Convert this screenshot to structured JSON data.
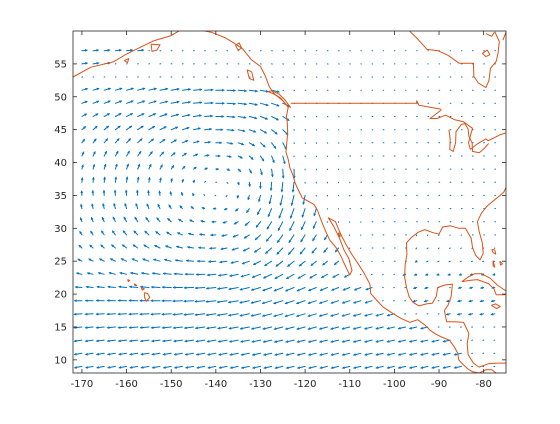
{
  "chart_data": {
    "type": "quiver",
    "title": "",
    "xlabel": "",
    "ylabel": "",
    "xlim": [
      -172,
      -75
    ],
    "ylim": [
      8,
      60
    ],
    "xticks": [
      -170,
      -160,
      -150,
      -140,
      -130,
      -120,
      -110,
      -100,
      -90,
      -80
    ],
    "yticks": [
      10,
      15,
      20,
      25,
      30,
      35,
      40,
      45,
      50,
      55
    ],
    "grid": false,
    "box": true,
    "colors": {
      "arrows": "#0072bd",
      "coastline": "#d95319",
      "axes": "#262626",
      "background": "#ffffff"
    },
    "vector_field": {
      "x_range": [
        -170,
        -76
      ],
      "x_step": 2.5,
      "y_range": [
        9,
        58
      ],
      "y_step": 2,
      "description_of_flow": "Clockwise North Pacific high centered near -140,37; westerlies north of 45N; northerly flow along the California coast; easterly trade winds south of 25N; weak winds over land"
    },
    "coastlines": [
      {
        "name": "alaska-coast",
        "points": [
          [
            -172,
            53
          ],
          [
            -168,
            54.5
          ],
          [
            -163,
            55.3
          ],
          [
            -160,
            56.5
          ],
          [
            -157,
            57.5
          ],
          [
            -154,
            58.5
          ],
          [
            -150,
            59.3
          ],
          [
            -147,
            60.5
          ],
          [
            -144,
            60.2
          ],
          [
            -141,
            59.8
          ],
          [
            -138,
            59
          ],
          [
            -136,
            58.2
          ],
          [
            -134,
            57.3
          ],
          [
            -132,
            55.6
          ],
          [
            -130,
            54.6
          ],
          [
            -129,
            53.3
          ],
          [
            -128,
            51.5
          ],
          [
            -127,
            50.5
          ],
          [
            -125,
            49.4
          ],
          [
            -123.8,
            48.4
          ],
          [
            -124.2,
            47
          ],
          [
            -124,
            46
          ],
          [
            -123.9,
            44.5
          ],
          [
            -124.1,
            43
          ],
          [
            -124.3,
            41.6
          ],
          [
            -123.8,
            40.5
          ],
          [
            -123.4,
            39.2
          ],
          [
            -122.7,
            38
          ],
          [
            -122.3,
            37
          ],
          [
            -121.8,
            36.2
          ],
          [
            -120.6,
            34.6
          ],
          [
            -119,
            34
          ],
          [
            -118,
            33.6
          ],
          [
            -117.2,
            32.7
          ],
          [
            -116.4,
            31.2
          ],
          [
            -115.5,
            29.7
          ],
          [
            -114.5,
            28.2
          ],
          [
            -113,
            27
          ],
          [
            -112,
            25.8
          ],
          [
            -110.8,
            24
          ],
          [
            -110,
            22.9
          ],
          [
            -109.5,
            23.6
          ],
          [
            -110.2,
            25.4
          ],
          [
            -111.3,
            26.7
          ],
          [
            -112.3,
            28.5
          ],
          [
            -113.6,
            30.3
          ],
          [
            -114.8,
            31.6
          ],
          [
            -113.2,
            31
          ],
          [
            -112.1,
            29.2
          ],
          [
            -110.8,
            27.5
          ],
          [
            -109.5,
            26
          ],
          [
            -108.2,
            24.7
          ],
          [
            -106.8,
            23.2
          ],
          [
            -105.5,
            21.5
          ],
          [
            -105.3,
            20.1
          ],
          [
            -104,
            19.1
          ],
          [
            -102.5,
            18
          ],
          [
            -100.5,
            17.1
          ],
          [
            -98.5,
            16.3
          ],
          [
            -96.5,
            15.7
          ],
          [
            -94.8,
            16.1
          ],
          [
            -93.2,
            15.3
          ],
          [
            -92,
            14.5
          ],
          [
            -90.7,
            13.9
          ],
          [
            -89.2,
            13.4
          ],
          [
            -87.7,
            13
          ],
          [
            -86.6,
            12
          ],
          [
            -85.8,
            11
          ],
          [
            -85.6,
            10
          ],
          [
            -84.8,
            9.4
          ],
          [
            -83.5,
            8.6
          ],
          [
            -82.5,
            8.2
          ],
          [
            -81,
            8
          ],
          [
            -79.5,
            8.5
          ],
          [
            -78.2,
            8.5
          ],
          [
            -77.2,
            8
          ]
        ]
      },
      {
        "name": "gulf-coast",
        "points": [
          [
            -75,
            9.5
          ],
          [
            -77,
            9.5
          ],
          [
            -79,
            9.4
          ],
          [
            -81,
            8.9
          ],
          [
            -82.3,
            9.5
          ],
          [
            -83.5,
            10.8
          ],
          [
            -83.7,
            12.5
          ],
          [
            -83.3,
            14
          ],
          [
            -84.5,
            15.7
          ],
          [
            -86.5,
            15.8
          ],
          [
            -88.3,
            15.8
          ],
          [
            -88.8,
            17.5
          ],
          [
            -88,
            18.3
          ],
          [
            -87.3,
            19.6
          ],
          [
            -87,
            21.5
          ],
          [
            -88.5,
            21.4
          ],
          [
            -90.3,
            21
          ],
          [
            -90.6,
            19.7
          ],
          [
            -91.5,
            18.6
          ],
          [
            -92.8,
            18.5
          ],
          [
            -94.5,
            18.2
          ],
          [
            -95.8,
            18.7
          ],
          [
            -96.7,
            19.6
          ],
          [
            -97.3,
            21
          ],
          [
            -97.7,
            22.5
          ],
          [
            -97.6,
            24.4
          ],
          [
            -97.2,
            26
          ],
          [
            -97.3,
            27.8
          ],
          [
            -96.2,
            28.6
          ],
          [
            -94.7,
            29.4
          ],
          [
            -93.2,
            29.8
          ],
          [
            -91.6,
            29.4
          ],
          [
            -90,
            29.1
          ],
          [
            -89.2,
            30.2
          ],
          [
            -87.5,
            30.4
          ],
          [
            -85.6,
            30
          ],
          [
            -84.1,
            30
          ],
          [
            -82.8,
            28.5
          ],
          [
            -82.5,
            27.1
          ],
          [
            -81.8,
            25.9
          ],
          [
            -80.8,
            25.2
          ],
          [
            -80.1,
            26.2
          ],
          [
            -80.3,
            27.8
          ],
          [
            -81,
            29.5
          ],
          [
            -81.4,
            31
          ],
          [
            -80.5,
            32.3
          ],
          [
            -79.2,
            33.4
          ],
          [
            -77.8,
            34.2
          ],
          [
            -76.3,
            35
          ],
          [
            -75.5,
            35.5
          ],
          [
            -75,
            36.2
          ]
        ]
      },
      {
        "name": "us-canada-border",
        "points": [
          [
            -123.2,
            49
          ],
          [
            -95,
            49
          ],
          [
            -95,
            49.4
          ],
          [
            -94.5,
            48.7
          ],
          [
            -92,
            48.4
          ],
          [
            -89.5,
            48.1
          ]
        ]
      },
      {
        "name": "great-lakes-north",
        "points": [
          [
            -75,
            44.5
          ],
          [
            -76.4,
            44.2
          ],
          [
            -79,
            43.3
          ],
          [
            -79.5,
            43.6
          ],
          [
            -81.5,
            42.8
          ],
          [
            -83,
            42
          ],
          [
            -83.4,
            43
          ],
          [
            -82.5,
            45.2
          ],
          [
            -84.5,
            46.2
          ],
          [
            -86.5,
            46.5
          ],
          [
            -88.5,
            47.2
          ],
          [
            -90.5,
            46.7
          ],
          [
            -92,
            46.7
          ],
          [
            -89.5,
            48
          ]
        ]
      },
      {
        "name": "great-lakes-south",
        "points": [
          [
            -87.8,
            45
          ],
          [
            -87.5,
            43.5
          ],
          [
            -87.6,
            42
          ],
          [
            -86.8,
            41.7
          ],
          [
            -86.3,
            43
          ],
          [
            -86.2,
            44.7
          ],
          [
            -85,
            45.8
          ],
          [
            -84.2,
            45.9
          ],
          [
            -83.5,
            45.1
          ],
          [
            -83.3,
            44
          ],
          [
            -82.6,
            43
          ],
          [
            -82.5,
            41.7
          ],
          [
            -81,
            41.5
          ],
          [
            -79.8,
            42.2
          ],
          [
            -78.9,
            42.9
          ]
        ]
      },
      {
        "name": "hudson-bay",
        "points": [
          [
            -96.6,
            60
          ],
          [
            -94.8,
            58.8
          ],
          [
            -92.7,
            57.2
          ],
          [
            -90.2,
            57
          ],
          [
            -88,
            56.3
          ],
          [
            -85.5,
            55.1
          ],
          [
            -82.3,
            55.1
          ],
          [
            -82.2,
            53.1
          ],
          [
            -81.2,
            52.1
          ],
          [
            -79.5,
            51.4
          ],
          [
            -78.8,
            52.5
          ],
          [
            -78.5,
            54.3
          ],
          [
            -77.2,
            55.4
          ],
          [
            -76.8,
            56.6
          ],
          [
            -76.5,
            58.4
          ],
          [
            -77.5,
            59.9
          ]
        ]
      },
      {
        "name": "james-bay-islands",
        "points": [
          [
            -80.3,
            56.6
          ],
          [
            -79.5,
            56.1
          ],
          [
            -78.6,
            56.4
          ],
          [
            -79.2,
            57.1
          ],
          [
            -80.3,
            56.6
          ]
        ]
      },
      {
        "name": "cuba",
        "points": [
          [
            -84.9,
            21.9
          ],
          [
            -83.5,
            22.6
          ],
          [
            -82,
            23.1
          ],
          [
            -80.5,
            23.1
          ],
          [
            -78.5,
            22.4
          ],
          [
            -77,
            21.4
          ],
          [
            -75.5,
            20.7
          ],
          [
            -74.3,
            20.2
          ],
          [
            -75.3,
            19.9
          ],
          [
            -77.2,
            19.9
          ],
          [
            -77.7,
            20.8
          ],
          [
            -78.9,
            21.6
          ],
          [
            -81.4,
            22.2
          ],
          [
            -82.9,
            22.1
          ],
          [
            -84.9,
            21.9
          ]
        ]
      },
      {
        "name": "jamaica",
        "points": [
          [
            -78.3,
            18.3
          ],
          [
            -77.3,
            18.5
          ],
          [
            -76.3,
            18.1
          ],
          [
            -77.1,
            17.8
          ],
          [
            -78.3,
            18.3
          ]
        ]
      },
      {
        "name": "hispaniola",
        "points": [
          [
            -75,
            19.9
          ],
          [
            -75,
            18.2
          ],
          [
            -74.3,
            18.1
          ],
          [
            -75,
            19.9
          ]
        ]
      },
      {
        "name": "bahamas-1",
        "points": [
          [
            -78.2,
            26.8
          ],
          [
            -77.5,
            26.7
          ],
          [
            -77.3,
            26.1
          ],
          [
            -77.9,
            26.3
          ],
          [
            -78.2,
            26.8
          ]
        ]
      },
      {
        "name": "bahamas-2",
        "points": [
          [
            -77.9,
            25.1
          ],
          [
            -77.5,
            24.1
          ],
          [
            -77.9,
            24.3
          ],
          [
            -77.9,
            25.1
          ]
        ]
      },
      {
        "name": "bahamas-3",
        "points": [
          [
            -76.4,
            25
          ],
          [
            -76.2,
            24.4
          ],
          [
            -75.8,
            24.6
          ],
          [
            -76.4,
            25
          ]
        ]
      },
      {
        "name": "isla-tiburon",
        "points": [
          [
            -112.6,
            29.3
          ],
          [
            -112.2,
            28.7
          ],
          [
            -112.1,
            29.2
          ],
          [
            -112.6,
            29.3
          ]
        ]
      },
      {
        "name": "hawaii-big-island",
        "points": [
          [
            -156,
            20.2
          ],
          [
            -155.3,
            20.1
          ],
          [
            -154.8,
            19.5
          ],
          [
            -155.6,
            18.9
          ],
          [
            -156,
            19.6
          ],
          [
            -156,
            20.2
          ]
        ]
      },
      {
        "name": "hawaii-maui",
        "points": [
          [
            -156.7,
            21
          ],
          [
            -156,
            20.8
          ],
          [
            -156.5,
            20.6
          ],
          [
            -156.7,
            21
          ]
        ]
      },
      {
        "name": "hawaii-oahu",
        "points": [
          [
            -158.3,
            21.6
          ],
          [
            -157.7,
            21.3
          ],
          [
            -158.1,
            21.3
          ],
          [
            -158.3,
            21.6
          ]
        ]
      },
      {
        "name": "hawaii-kauai",
        "points": [
          [
            -159.8,
            22.2
          ],
          [
            -159.3,
            22.1
          ],
          [
            -159.6,
            21.9
          ],
          [
            -159.8,
            22.2
          ]
        ]
      },
      {
        "name": "kodiak-island",
        "points": [
          [
            -154.5,
            58
          ],
          [
            -152.5,
            57.9
          ],
          [
            -153.2,
            57.1
          ],
          [
            -154.3,
            56.9
          ],
          [
            -154.5,
            58
          ]
        ]
      },
      {
        "name": "alaska-peninsula-islands",
        "points": [
          [
            -160.5,
            55.5
          ],
          [
            -159.5,
            55.8
          ],
          [
            -159.8,
            55.2
          ],
          [
            -160.5,
            55.5
          ]
        ]
      },
      {
        "name": "haida-gwaii",
        "points": [
          [
            -133,
            54.1
          ],
          [
            -132,
            53.8
          ],
          [
            -131.5,
            52.5
          ],
          [
            -132.5,
            52.8
          ],
          [
            -133,
            54.1
          ]
        ]
      },
      {
        "name": "vancouver-island",
        "points": [
          [
            -128.3,
            50.8
          ],
          [
            -127,
            50.4
          ],
          [
            -125.5,
            49.8
          ],
          [
            -124,
            48.6
          ],
          [
            -123.3,
            48.4
          ],
          [
            -124.5,
            49.5
          ],
          [
            -125.8,
            50.4
          ],
          [
            -127.5,
            50.9
          ],
          [
            -128.3,
            50.8
          ]
        ]
      },
      {
        "name": "se-alaska-island",
        "points": [
          [
            -135.6,
            57.8
          ],
          [
            -134.8,
            58.2
          ],
          [
            -134.2,
            57.4
          ],
          [
            -135,
            57.1
          ],
          [
            -135.6,
            57.8
          ]
        ]
      },
      {
        "name": "baffin-tip",
        "points": [
          [
            -79.5,
            59.6
          ],
          [
            -78.2,
            59.2
          ],
          [
            -77.6,
            59.8
          ]
        ]
      },
      {
        "name": "newfoundland-small",
        "points": [
          [
            -75.7,
            58.6
          ],
          [
            -75.3,
            59.3
          ],
          [
            -75,
            59.8
          ]
        ]
      }
    ]
  }
}
